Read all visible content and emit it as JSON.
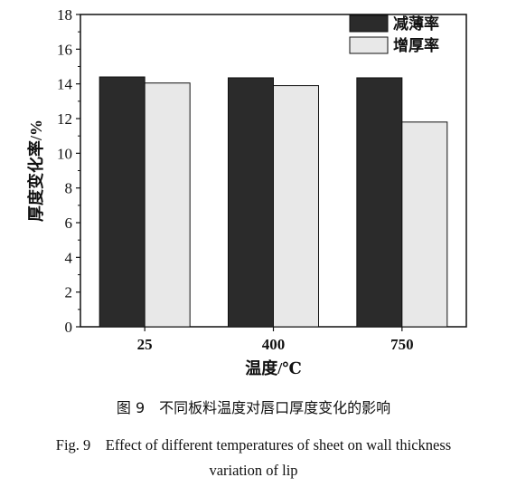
{
  "chart_data": {
    "type": "bar",
    "categories": [
      "25",
      "400",
      "750"
    ],
    "series": [
      {
        "name": "减薄率",
        "color": "#2b2b2b",
        "values": [
          14.4,
          14.35,
          14.35
        ]
      },
      {
        "name": "增厚率",
        "color": "#e8e8e8",
        "values": [
          14.05,
          13.9,
          11.8
        ]
      }
    ],
    "xlabel": "温度/℃",
    "ylabel": "厚度变化率/%",
    "ylim": [
      0,
      18
    ],
    "yticks": [
      0,
      2,
      4,
      6,
      8,
      10,
      12,
      14,
      16,
      18
    ],
    "grid": false,
    "legend_position": "top-right"
  },
  "caption": {
    "cn": "图 9　不同板料温度对唇口厚度变化的影响",
    "en_line1": "Fig. 9　Effect of different temperatures of sheet on wall thickness",
    "en_line2": "variation of lip"
  }
}
